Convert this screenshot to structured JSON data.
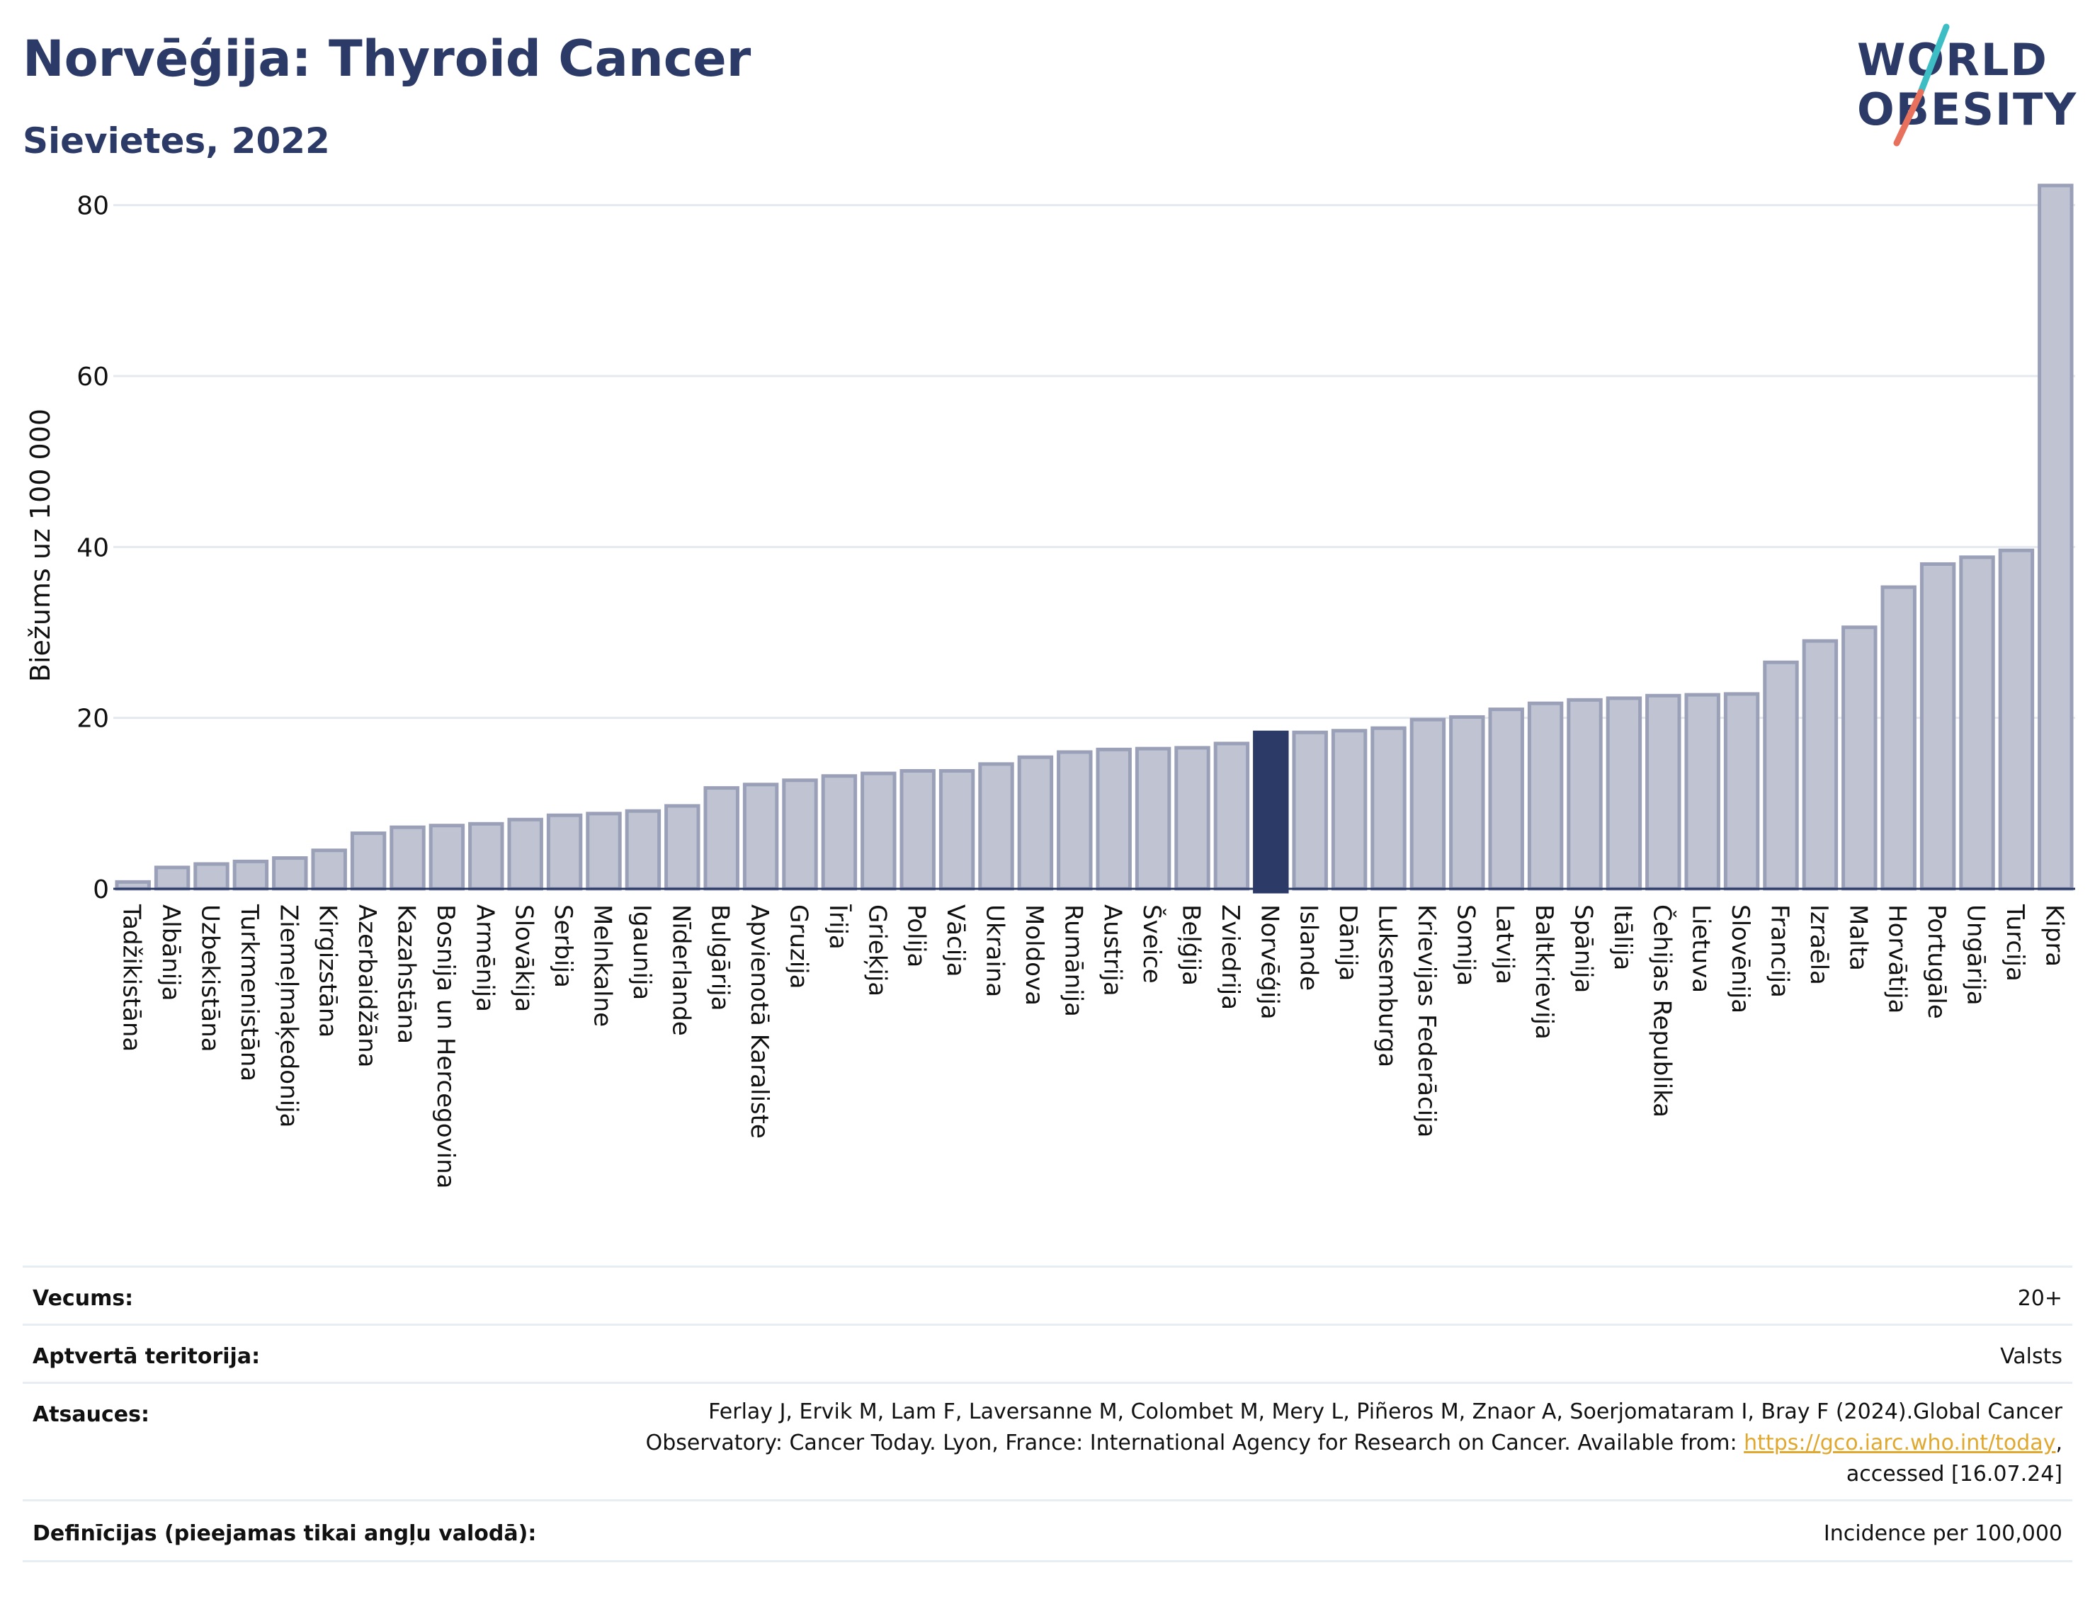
{
  "title": "Norvēģija: Thyroid Cancer",
  "subtitle": "Sievietes, 2022",
  "logo": {
    "line1": "WORLD",
    "line2": "OBESITY",
    "text": "WORLD OBESITY"
  },
  "colors": {
    "title": "#2b3a67",
    "bar": "#c0c4d2",
    "bar_stroke": "#9aa0b8",
    "highlight": "#2b3a67",
    "grid": "#e4e9ef",
    "link": "#e0a82e",
    "logo_slash_a": "#3dbdc4",
    "logo_slash_b": "#e8715d"
  },
  "chart_data": {
    "type": "bar",
    "ylabel": "Biežums uz 100 000",
    "xlabel": "",
    "ylim": [
      0,
      85
    ],
    "yticks": [
      0,
      20,
      40,
      60,
      80
    ],
    "grid": true,
    "highlight": "Norvēģija",
    "categories": [
      "Tadžikistāna",
      "Albānija",
      "Uzbekistāna",
      "Turkmenistāna",
      "Ziemeļmaķedonija",
      "Kirgizstāna",
      "Azerbaidžāna",
      "Kazahstāna",
      "Bosnija un Hercegovina",
      "Armēnija",
      "Slovākija",
      "Serbija",
      "Melnkalne",
      "Igaunija",
      "Nīderlande",
      "Bulgārija",
      "Apvienotā Karaliste",
      "Gruzija",
      "Īrija",
      "Grieķija",
      "Polija",
      "Vācija",
      "Ukraina",
      "Moldova",
      "Rumānija",
      "Austrija",
      "Šveice",
      "Beļģija",
      "Zviedrija",
      "Norvēģija",
      "Islande",
      "Dānija",
      "Luksemburga",
      "Krievijas Federācija",
      "Somija",
      "Latvija",
      "Baltkrievija",
      "Spānija",
      "Itālija",
      "Čehijas Republika",
      "Lietuva",
      "Slovēnija",
      "Francija",
      "Izraēla",
      "Malta",
      "Horvātija",
      "Portugāle",
      "Ungārija",
      "Turcija",
      "Kipra"
    ],
    "values": [
      0.8,
      2.5,
      2.9,
      3.2,
      3.6,
      4.5,
      6.5,
      7.2,
      7.4,
      7.6,
      8.1,
      8.6,
      8.8,
      9.1,
      9.7,
      11.8,
      12.2,
      12.7,
      13.2,
      13.5,
      13.8,
      13.8,
      14.6,
      15.4,
      16.0,
      16.3,
      16.4,
      16.5,
      17.0,
      18.3,
      18.3,
      18.5,
      18.8,
      19.8,
      20.1,
      21.0,
      21.7,
      22.1,
      22.3,
      22.6,
      22.7,
      22.8,
      26.5,
      29.0,
      30.6,
      35.3,
      38.0,
      38.8,
      39.6,
      82.3
    ]
  },
  "meta": [
    {
      "key": "Vecums:",
      "value": "20+"
    },
    {
      "key": "Aptvertā teritorija:",
      "value": "Valsts"
    },
    {
      "key": "Atsauces:",
      "value_line1": "Ferlay J, Ervik M, Lam F, Laversanne M, Colombet M, Mery L, Piñeros M, Znaor A, Soerjomataram I, Bray F (2024).Global Cancer",
      "value_line2a": "Observatory: Cancer Today. Lyon, France: International Agency for Research on Cancer. Available from: ",
      "link": "https://gco.iarc.who.int/today",
      "value_line2b": ",",
      "value_line3": "accessed [16.07.24]"
    },
    {
      "key": "Definīcijas (pieejamas tikai angļu valodā):",
      "value": "Incidence per 100,000"
    }
  ]
}
